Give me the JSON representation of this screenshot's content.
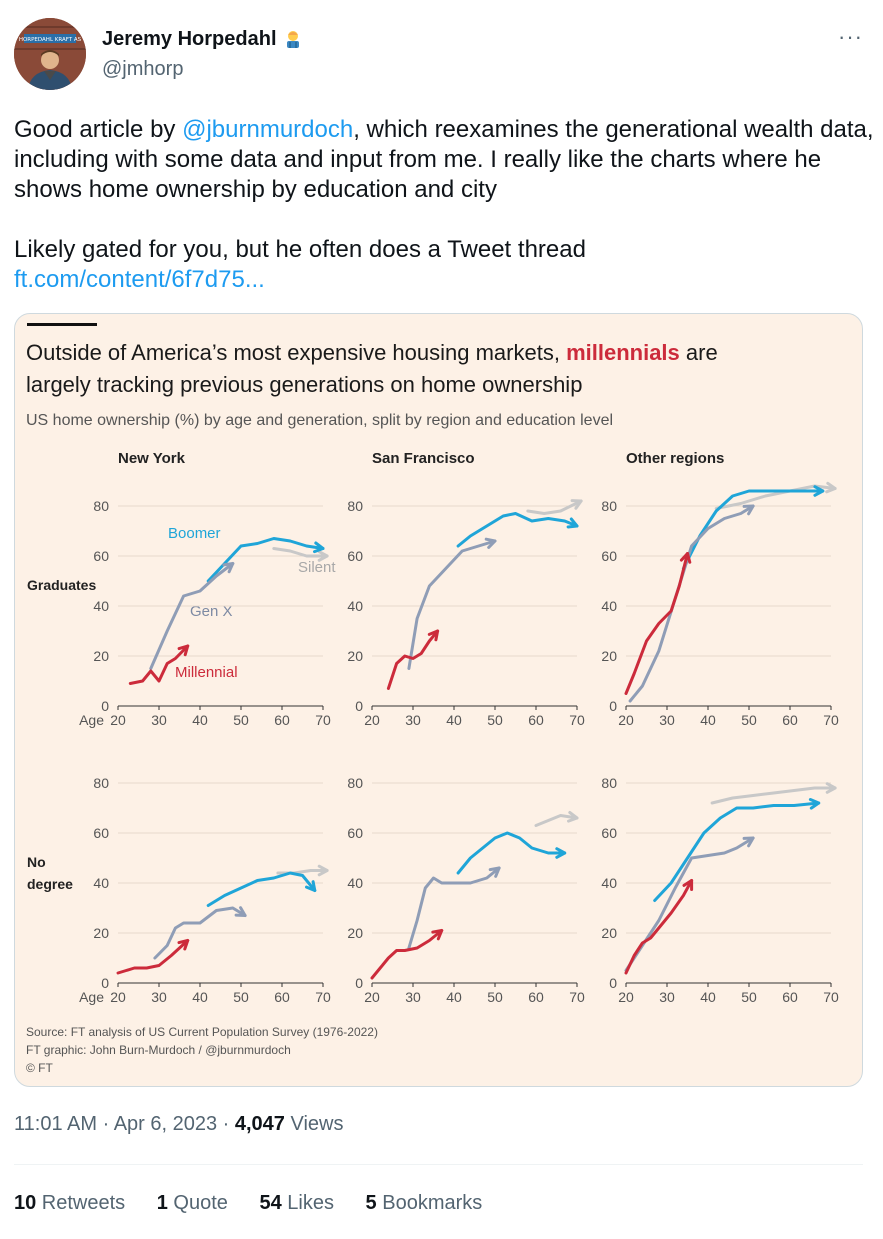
{
  "author": {
    "name": "Jeremy Horpedahl",
    "handle": "@jmhorp",
    "avatar_sign": "HORPEDAHL KRAFT AS"
  },
  "tweet": {
    "line1_pre": "Good article by ",
    "mention": "@jburnmurdoch",
    "line1_post": ", which reexamines the generational wealth data, including with some data and input from me. I really like the charts where he shows home ownership by education and city",
    "line2": "Likely gated for you, but he often does a Tweet thread",
    "link": "ft.com/content/6f7d75..."
  },
  "chart_header": {
    "title_pre": "Outside of America’s most expensive housing markets, ",
    "title_highlight": "millennials",
    "title_post": " are",
    "title_line2": "largely tracking previous generations on home ownership",
    "subtitle": "US home ownership (%) by age and generation, split by region and education level",
    "source": "Source: FT analysis of US Current Population Survey (1976-2022)",
    "credit": "FT graphic: John Burn-Murdoch / @jburnmurdoch",
    "copyright": "© FT",
    "row_labels": {
      "grad": "Graduates",
      "nodeg1": "No",
      "nodeg2": "degree"
    },
    "annotations": {
      "boomer": "Boomer",
      "silent": "Silent",
      "genx": "Gen X",
      "millennial": "Millennial"
    },
    "age_label": "Age"
  },
  "chart_data": [
    {
      "type": "line",
      "title": "New York",
      "row": "Graduates",
      "xlim": [
        20,
        70
      ],
      "ylim": [
        0,
        80
      ],
      "x_ticks": [
        20,
        30,
        40,
        50,
        60,
        70
      ],
      "y_ticks": [
        0,
        20,
        40,
        60,
        80
      ],
      "series": [
        {
          "name": "Silent",
          "x": [
            58,
            62,
            66,
            71
          ],
          "y": [
            63,
            62,
            60,
            60
          ]
        },
        {
          "name": "Boomer",
          "x": [
            42,
            46,
            50,
            54,
            58,
            62,
            66,
            70
          ],
          "y": [
            50,
            57,
            64,
            65,
            67,
            66,
            64,
            63
          ]
        },
        {
          "name": "Gen X",
          "x": [
            28,
            32,
            36,
            40,
            44,
            48
          ],
          "y": [
            15,
            30,
            44,
            46,
            52,
            57
          ]
        },
        {
          "name": "Millennial",
          "x": [
            23,
            26,
            28,
            30,
            32,
            34,
            37
          ],
          "y": [
            9,
            10,
            14,
            10,
            17,
            19,
            24
          ]
        }
      ]
    },
    {
      "type": "line",
      "title": "San Francisco",
      "row": "Graduates",
      "xlim": [
        20,
        70
      ],
      "ylim": [
        0,
        80
      ],
      "x_ticks": [
        20,
        30,
        40,
        50,
        60,
        70
      ],
      "y_ticks": [
        0,
        20,
        40,
        60,
        80
      ],
      "series": [
        {
          "name": "Silent",
          "x": [
            58,
            62,
            66,
            71
          ],
          "y": [
            78,
            77,
            78,
            82
          ]
        },
        {
          "name": "Boomer",
          "x": [
            41,
            44,
            48,
            52,
            55,
            59,
            63,
            67,
            70
          ],
          "y": [
            64,
            68,
            72,
            76,
            77,
            74,
            75,
            74,
            72
          ]
        },
        {
          "name": "Gen X",
          "x": [
            29,
            31,
            34,
            38,
            42,
            46,
            50
          ],
          "y": [
            15,
            35,
            48,
            55,
            62,
            64,
            66
          ]
        },
        {
          "name": "Millennial",
          "x": [
            24,
            26,
            28,
            30,
            32,
            34,
            36
          ],
          "y": [
            7,
            17,
            20,
            19,
            21,
            26,
            30
          ]
        }
      ]
    },
    {
      "type": "line",
      "title": "Other regions",
      "row": "Graduates",
      "xlim": [
        20,
        70
      ],
      "ylim": [
        0,
        80
      ],
      "x_ticks": [
        20,
        30,
        40,
        50,
        60,
        70
      ],
      "y_ticks": [
        0,
        20,
        40,
        60,
        80
      ],
      "series": [
        {
          "name": "Silent",
          "x": [
            42,
            48,
            54,
            60,
            66,
            71
          ],
          "y": [
            79,
            81,
            84,
            86,
            88,
            87
          ]
        },
        {
          "name": "Boomer",
          "x": [
            34,
            38,
            42,
            46,
            50,
            56,
            62,
            68
          ],
          "y": [
            55,
            68,
            78,
            84,
            86,
            86,
            86,
            86
          ]
        },
        {
          "name": "Gen X",
          "x": [
            21,
            24,
            28,
            32,
            36,
            40,
            44,
            48,
            51
          ],
          "y": [
            2,
            8,
            22,
            43,
            64,
            71,
            75,
            77,
            80
          ]
        },
        {
          "name": "Millennial",
          "x": [
            20,
            22,
            25,
            28,
            31,
            33,
            35
          ],
          "y": [
            5,
            13,
            26,
            33,
            38,
            48,
            61
          ]
        }
      ]
    },
    {
      "type": "line",
      "title": "",
      "row": "No degree",
      "xlim": [
        20,
        70
      ],
      "ylim": [
        0,
        80
      ],
      "x_ticks": [
        20,
        30,
        40,
        50,
        60,
        70
      ],
      "y_ticks": [
        0,
        20,
        40,
        60,
        80
      ],
      "series": [
        {
          "name": "Silent",
          "x": [
            59,
            63,
            67,
            71
          ],
          "y": [
            44,
            44,
            45,
            45
          ]
        },
        {
          "name": "Boomer",
          "x": [
            42,
            46,
            50,
            54,
            58,
            62,
            65,
            68
          ],
          "y": [
            31,
            35,
            38,
            41,
            42,
            44,
            43,
            37
          ]
        },
        {
          "name": "Gen X",
          "x": [
            29,
            32,
            34,
            36,
            40,
            44,
            48,
            51
          ],
          "y": [
            10,
            15,
            22,
            24,
            24,
            29,
            30,
            27
          ]
        },
        {
          "name": "Millennial",
          "x": [
            20,
            22,
            24,
            27,
            30,
            33,
            37
          ],
          "y": [
            4,
            5,
            6,
            6,
            7,
            11,
            17
          ]
        }
      ]
    },
    {
      "type": "line",
      "title": "",
      "row": "No degree",
      "xlim": [
        20,
        70
      ],
      "ylim": [
        0,
        80
      ],
      "x_ticks": [
        20,
        30,
        40,
        50,
        60,
        70
      ],
      "y_ticks": [
        0,
        20,
        40,
        60,
        80
      ],
      "series": [
        {
          "name": "Silent",
          "x": [
            60,
            63,
            66,
            70
          ],
          "y": [
            63,
            65,
            67,
            66
          ]
        },
        {
          "name": "Boomer",
          "x": [
            41,
            44,
            47,
            50,
            53,
            56,
            59,
            63,
            67
          ],
          "y": [
            44,
            50,
            54,
            58,
            60,
            58,
            54,
            52,
            52
          ]
        },
        {
          "name": "Gen X",
          "x": [
            29,
            31,
            33,
            35,
            37,
            40,
            44,
            48,
            51
          ],
          "y": [
            14,
            25,
            38,
            42,
            40,
            40,
            40,
            42,
            46
          ]
        },
        {
          "name": "Millennial",
          "x": [
            20,
            22,
            24,
            26,
            28,
            31,
            34,
            37
          ],
          "y": [
            2,
            6,
            10,
            13,
            13,
            14,
            17,
            21
          ]
        }
      ]
    },
    {
      "type": "line",
      "title": "",
      "row": "No degree",
      "xlim": [
        20,
        70
      ],
      "ylim": [
        0,
        80
      ],
      "x_ticks": [
        20,
        30,
        40,
        50,
        60,
        70
      ],
      "y_ticks": [
        0,
        20,
        40,
        60,
        80
      ],
      "series": [
        {
          "name": "Silent",
          "x": [
            41,
            46,
            51,
            56,
            61,
            66,
            71
          ],
          "y": [
            72,
            74,
            75,
            76,
            77,
            78,
            78
          ]
        },
        {
          "name": "Boomer",
          "x": [
            27,
            31,
            35,
            39,
            43,
            47,
            51,
            56,
            61,
            67
          ],
          "y": [
            33,
            40,
            50,
            60,
            66,
            70,
            70,
            71,
            71,
            72
          ]
        },
        {
          "name": "Gen X",
          "x": [
            20,
            24,
            28,
            32,
            36,
            40,
            44,
            47,
            51
          ],
          "y": [
            5,
            15,
            25,
            38,
            50,
            51,
            52,
            54,
            58
          ]
        },
        {
          "name": "Millennial",
          "x": [
            20,
            22,
            24,
            26,
            28,
            31,
            34,
            36
          ],
          "y": [
            4,
            11,
            16,
            18,
            22,
            28,
            35,
            41
          ]
        }
      ]
    }
  ],
  "timestamp": "11:01 AM · Apr 6, 2023 · ",
  "views_count": "4,047",
  "views_label": " Views",
  "stats": {
    "retweets_count": "10",
    "retweets_label": " Retweets",
    "quotes_count": "1",
    "quotes_label": " Quote",
    "likes_count": "54",
    "likes_label": " Likes",
    "bookmarks_count": "5",
    "bookmarks_label": " Bookmarks"
  },
  "colors": {
    "silent": "#c8c8c8",
    "boomer": "#1fa5d8",
    "genx": "#8f9db6",
    "millennial": "#cc2b3b",
    "card_bg": "#fdf1e6",
    "link": "#1d9bf0"
  }
}
